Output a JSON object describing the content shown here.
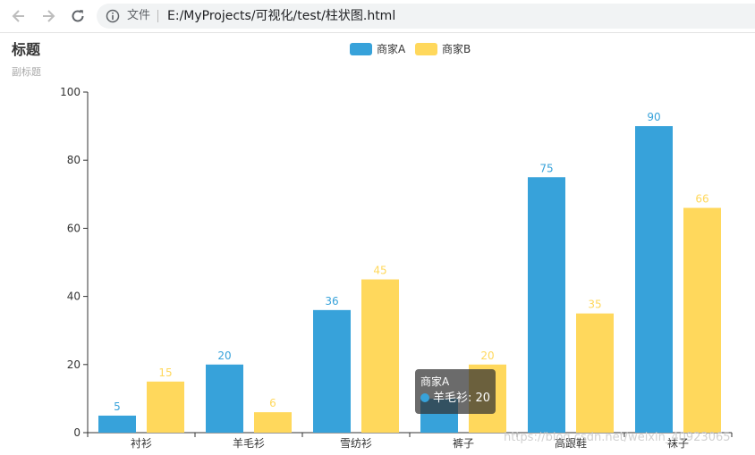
{
  "browser": {
    "file_label": "文件",
    "url": "E:/MyProjects/可视化/test/柱状图.html"
  },
  "colors": {
    "series_a": "#37a2da",
    "series_b": "#ffd85c",
    "axis": "#333333"
  },
  "chart_data": {
    "type": "bar",
    "title": "标题",
    "subtitle": "副标题",
    "categories": [
      "衬衫",
      "羊毛衫",
      "雪纺衫",
      "裤子",
      "高跟鞋",
      "袜子"
    ],
    "series": [
      {
        "name": "商家A",
        "color": "#37a2da",
        "values": [
          5,
          20,
          36,
          10,
          75,
          90
        ]
      },
      {
        "name": "商家B",
        "color": "#ffd85c",
        "values": [
          15,
          6,
          45,
          20,
          35,
          66
        ]
      }
    ],
    "ylim": [
      0,
      100
    ],
    "yticks": [
      0,
      20,
      40,
      60,
      80,
      100
    ],
    "legend_position": "top-center",
    "grid": false,
    "hidden_labels": [
      {
        "series": 0,
        "category": 3
      }
    ]
  },
  "tooltip": {
    "title": "商家A",
    "category": "羊毛衫",
    "value": "20"
  },
  "watermark": "https://blog.csdn.net/weixin_40923065"
}
